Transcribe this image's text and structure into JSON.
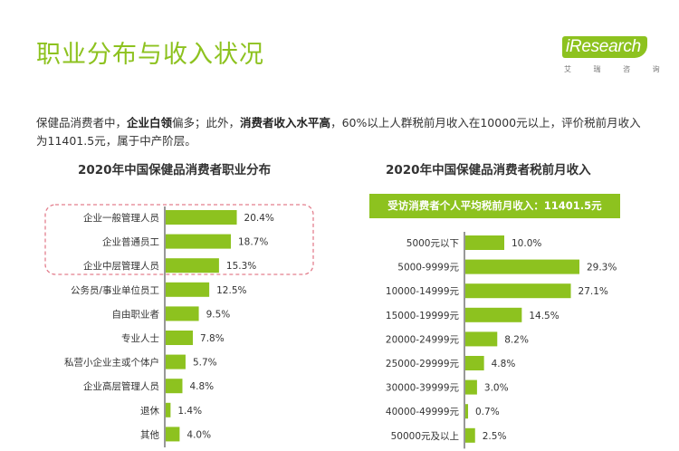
{
  "page": {
    "title": "职业分布与收入状况",
    "logo": {
      "brand": "iResearch",
      "sub": "艾 瑞 咨 询"
    },
    "description": {
      "p1": "保健品消费者中，",
      "b1": "企业白领",
      "p2": "偏多；此外，",
      "b2": "消费者收入水平高",
      "p3": "，60%以上人群税前月收入在10000元以上，评价税前月收入为11401.5元，属于中产阶层。"
    }
  },
  "colors": {
    "bar": "#8dc21f",
    "axis": "#777777",
    "highlight_border": "#e37f8e",
    "title": "#8dc21f"
  },
  "chart_data": [
    {
      "type": "bar",
      "orientation": "horizontal",
      "title": "2020年中国保健品消费者职业分布",
      "categories": [
        "企业一般管理人员",
        "企业普通员工",
        "企业中层管理人员",
        "公务员/事业单位员工",
        "自由职业者",
        "专业人士",
        "私营小企业主或个体户",
        "企业高层管理人员",
        "退休",
        "其他"
      ],
      "values": [
        20.4,
        18.7,
        15.3,
        12.5,
        9.5,
        7.8,
        5.7,
        4.8,
        1.4,
        4.0
      ],
      "labels": [
        "20.4%",
        "18.7%",
        "15.3%",
        "12.5%",
        "9.5%",
        "7.8%",
        "5.7%",
        "4.8%",
        "1.4%",
        "4.0%"
      ],
      "highlighted": [
        "企业一般管理人员",
        "企业普通员工",
        "企业中层管理人员"
      ]
    },
    {
      "type": "bar",
      "orientation": "horizontal",
      "title": "2020年中国保健品消费者税前月收入",
      "annotation": "受访消费者个人平均税前月收入：11401.5元",
      "categories": [
        "5000元以下",
        "5000-9999元",
        "10000-14999元",
        "15000-19999元",
        "20000-24999元",
        "25000-29999元",
        "30000-39999元",
        "40000-49999元",
        "50000元及以上"
      ],
      "values": [
        10.0,
        29.3,
        27.1,
        14.5,
        8.2,
        4.8,
        3.0,
        0.7,
        2.5
      ],
      "labels": [
        "10.0%",
        "29.3%",
        "27.1%",
        "14.5%",
        "8.2%",
        "4.8%",
        "3.0%",
        "0.7%",
        "2.5%"
      ]
    }
  ]
}
